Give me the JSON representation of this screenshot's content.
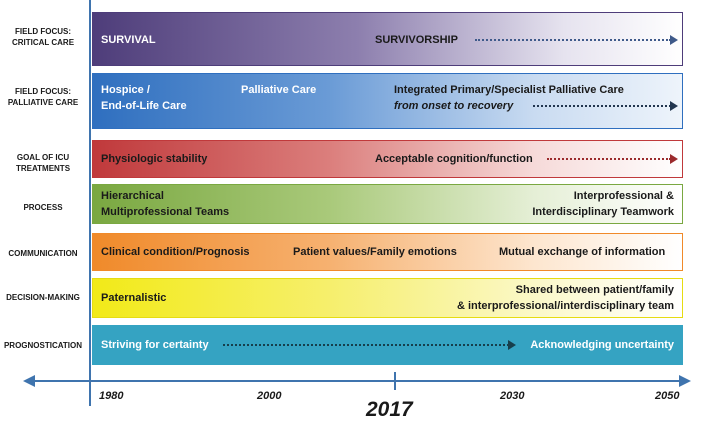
{
  "rows": {
    "critical_care": {
      "label_line1": "FIELD FOCUS:",
      "label_line2": "CRITICAL CARE",
      "left": "SURVIVAL",
      "right": "SURVIVORSHIP"
    },
    "palliative_care": {
      "label_line1": "FIELD FOCUS:",
      "label_line2": "PALLIATIVE CARE",
      "left_line1": "Hospice /",
      "left_line2": "End-of-Life Care",
      "middle": "Palliative Care",
      "right_line1": "Integrated Primary/Specialist Palliative Care",
      "right_line2": "from onset to recovery"
    },
    "goal": {
      "label_line1": "GOAL OF ICU",
      "label_line2": "TREATMENTS",
      "left": "Physiologic stability",
      "right": "Acceptable cognition/function"
    },
    "process": {
      "label": "PROCESS",
      "left_line1": "Hierarchical",
      "left_line2": "Multiprofessional Teams",
      "right_line1": "Interprofessional &",
      "right_line2": "Interdisciplinary Teamwork"
    },
    "communication": {
      "label": "COMMUNICATION",
      "left": "Clinical condition/Prognosis",
      "middle": "Patient values/Family emotions",
      "right": "Mutual exchange of information"
    },
    "decision_making": {
      "label": "DECISION-MAKING",
      "left": "Paternalistic",
      "right_line1": "Shared between patient/family",
      "right_line2": "& interprofessional/interdisciplinary team"
    },
    "prognostication": {
      "label": "PROGNOSTICATION",
      "left": "Striving for certainty",
      "right": "Acknowledging uncertainty"
    }
  },
  "timeline": {
    "years": [
      "1980",
      "2000",
      "2030",
      "2050"
    ],
    "current_year": "2017"
  },
  "colors": {
    "axis": "#3f74ae",
    "critical_care": "#4e3d7a",
    "palliative_care": "#2f6fbf",
    "goal": "#c0393b",
    "process": "#7aa841",
    "communication": "#f08a2a",
    "decision_making": "#f2ea18",
    "prognostication": "#35a3c2"
  }
}
